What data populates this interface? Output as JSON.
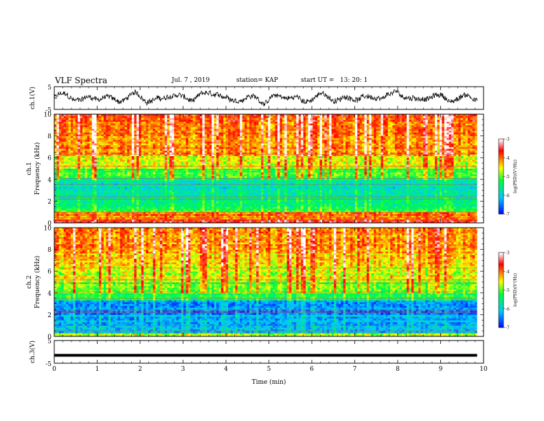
{
  "header": {
    "title": "VLF Spectra",
    "date": "Jul. 7 , 2019",
    "station": "station= KAP",
    "start_ut": "start UT =   13: 20: 1"
  },
  "colors": {
    "waveform": "#000000",
    "colormap": [
      "#0000ff",
      "#00ccff",
      "#00ff33",
      "#ffff00",
      "#ff0000",
      "#ffffff"
    ]
  },
  "chart_data": [
    {
      "type": "line",
      "panel": "waveform-ch1",
      "ylabel": "ch.1(V)",
      "ylim": [
        -5,
        5
      ],
      "yticks": [
        "5",
        "-5"
      ],
      "xlim": [
        0,
        10
      ],
      "description_values": {
        "typical_range": [
          -3,
          3
        ],
        "mean": 0,
        "duration_min": 9.85
      }
    },
    {
      "type": "heatmap",
      "panel": "spectrogram-ch1",
      "ylabel_line1": "ch.1",
      "ylabel_line2": "Frequency (kHz)",
      "ylim": [
        0,
        10
      ],
      "yticks": [
        "0",
        "2",
        "4",
        "6",
        "8",
        "10"
      ],
      "xlim": [
        0,
        10
      ],
      "duration_min": 9.85,
      "freq_bands_khz": [
        0.0,
        0.4,
        1.0,
        1.5,
        2.3,
        3.0,
        3.6,
        4.2,
        5.0,
        6.2,
        8.0,
        10.0
      ],
      "band_log_psd": [
        -3.6,
        -4.0,
        -5.2,
        -5.4,
        -5.6,
        -5.8,
        -5.6,
        -5.1,
        -4.6,
        -4.1,
        -3.9
      ],
      "colorbar": {
        "label": "log(PSD)(V²/Hz)",
        "range": [
          -7,
          -3
        ],
        "ticks": [
          "-3",
          "-4",
          "-5",
          "-6",
          "-7"
        ]
      }
    },
    {
      "type": "heatmap",
      "panel": "spectrogram-ch2",
      "ylabel_line1": "ch.2",
      "ylabel_line2": "Frequency (kHz)",
      "ylim": [
        0,
        10
      ],
      "yticks": [
        "0",
        "2",
        "4",
        "6",
        "8",
        "10"
      ],
      "xlim": [
        0,
        10
      ],
      "duration_min": 9.85,
      "freq_bands_khz": [
        0.0,
        0.4,
        1.0,
        2.0,
        2.5,
        3.4,
        4.0,
        5.0,
        6.5,
        8.0,
        10.0
      ],
      "band_log_psd": [
        -4.8,
        -6.0,
        -6.2,
        -6.4,
        -6.3,
        -5.3,
        -5.0,
        -4.6,
        -4.3,
        -4.1
      ],
      "colorbar": {
        "label": "log(PSD)(V²/Hz)",
        "range": [
          -7,
          -3
        ],
        "ticks": [
          "-3",
          "-4",
          "-5",
          "-6",
          "-7"
        ]
      }
    },
    {
      "type": "line",
      "panel": "waveform-ch3",
      "ylabel": "ch.3(V)",
      "ylim": [
        -5,
        5
      ],
      "yticks": [
        "5",
        "-5"
      ],
      "xlim": [
        0,
        10
      ],
      "x": [
        0,
        9.85
      ],
      "y": [
        -1.5,
        -1.5
      ],
      "xlabel": "Time (min)",
      "xticks": [
        "0",
        "1",
        "2",
        "3",
        "4",
        "5",
        "6",
        "7",
        "8",
        "9",
        "10"
      ]
    }
  ]
}
